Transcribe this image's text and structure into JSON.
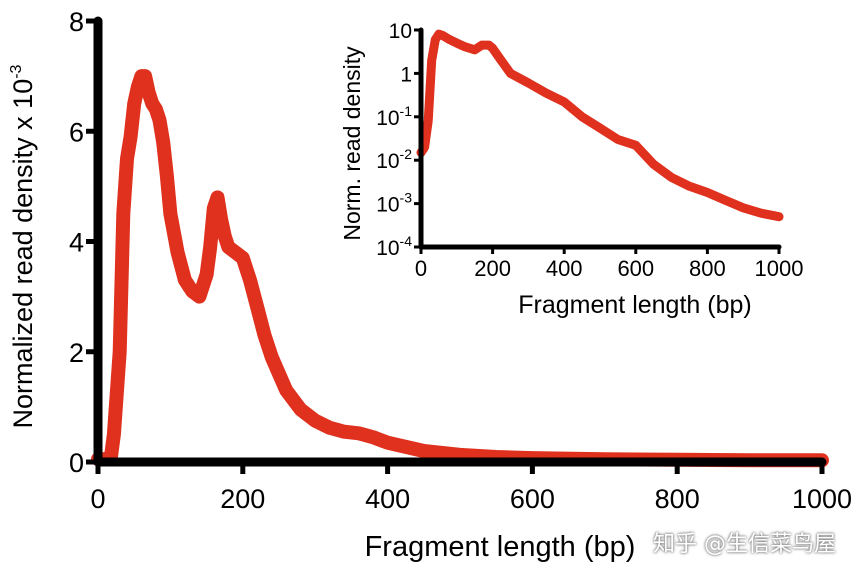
{
  "colors": {
    "series": "#e0301e",
    "axis": "#000000"
  },
  "watermark": "知乎 @生信菜鸟屋",
  "chart_data": [
    {
      "type": "line",
      "xlabel": "Fragment length (bp)",
      "ylabel": "Normalized read density x 10",
      "ylabel_exponent": "-3",
      "xlim": [
        0,
        1000
      ],
      "ylim": [
        0,
        8
      ],
      "xticks": [
        "0",
        "200",
        "400",
        "600",
        "800",
        "1000"
      ],
      "yticks": [
        "0",
        "2",
        "4",
        "6",
        "8"
      ],
      "grid": false,
      "series": [
        {
          "x": [
            0,
            10,
            18,
            22,
            30,
            35,
            40,
            45,
            50,
            55,
            60,
            65,
            70,
            75,
            80,
            85,
            90,
            95,
            100,
            110,
            120,
            130,
            140,
            150,
            155,
            160,
            165,
            170,
            175,
            180,
            190,
            200,
            210,
            220,
            230,
            240,
            250,
            260,
            280,
            300,
            320,
            340,
            360,
            380,
            400,
            450,
            500,
            550,
            600,
            700,
            800,
            900,
            1000
          ],
          "y": [
            0.05,
            0.05,
            0.1,
            0.5,
            2.0,
            4.5,
            5.5,
            5.9,
            6.5,
            6.8,
            7.0,
            7.0,
            6.7,
            6.5,
            6.4,
            6.2,
            5.8,
            5.2,
            4.5,
            3.8,
            3.3,
            3.1,
            3.0,
            3.4,
            3.9,
            4.6,
            4.8,
            4.4,
            4.1,
            3.9,
            3.8,
            3.7,
            3.3,
            2.8,
            2.3,
            1.9,
            1.6,
            1.3,
            0.95,
            0.75,
            0.62,
            0.55,
            0.52,
            0.45,
            0.35,
            0.2,
            0.13,
            0.09,
            0.07,
            0.05,
            0.04,
            0.03,
            0.03
          ]
        }
      ]
    },
    {
      "type": "line",
      "inset": true,
      "xlabel": "Fragment length (bp)",
      "ylabel": "Norm. read density",
      "xlim": [
        0,
        1000
      ],
      "yscale": "log",
      "ylim": [
        0.0001,
        10
      ],
      "xticks": [
        "0",
        "200",
        "400",
        "600",
        "800",
        "1000"
      ],
      "yticks": [
        {
          "value": 10,
          "base": "10",
          "exp": ""
        },
        {
          "value": 1,
          "base": "1",
          "exp": ""
        },
        {
          "value": 0.1,
          "base": "10",
          "exp": "-1"
        },
        {
          "value": 0.01,
          "base": "10",
          "exp": "-2"
        },
        {
          "value": 0.001,
          "base": "10",
          "exp": "-3"
        },
        {
          "value": 0.0001,
          "base": "10",
          "exp": "-4"
        }
      ],
      "grid": false,
      "series": [
        {
          "x": [
            0,
            10,
            20,
            30,
            40,
            50,
            60,
            80,
            100,
            120,
            150,
            170,
            190,
            200,
            220,
            250,
            300,
            350,
            400,
            450,
            500,
            550,
            600,
            650,
            700,
            750,
            800,
            850,
            900,
            950,
            1000
          ],
          "y": [
            0.015,
            0.02,
            0.08,
            2.0,
            6.0,
            8.0,
            7.5,
            6.0,
            5.0,
            4.2,
            3.5,
            4.5,
            4.5,
            3.8,
            2.2,
            1.0,
            0.6,
            0.35,
            0.22,
            0.1,
            0.055,
            0.03,
            0.022,
            0.008,
            0.004,
            0.0025,
            0.0018,
            0.0012,
            0.0008,
            0.0006,
            0.0005
          ]
        }
      ]
    }
  ]
}
